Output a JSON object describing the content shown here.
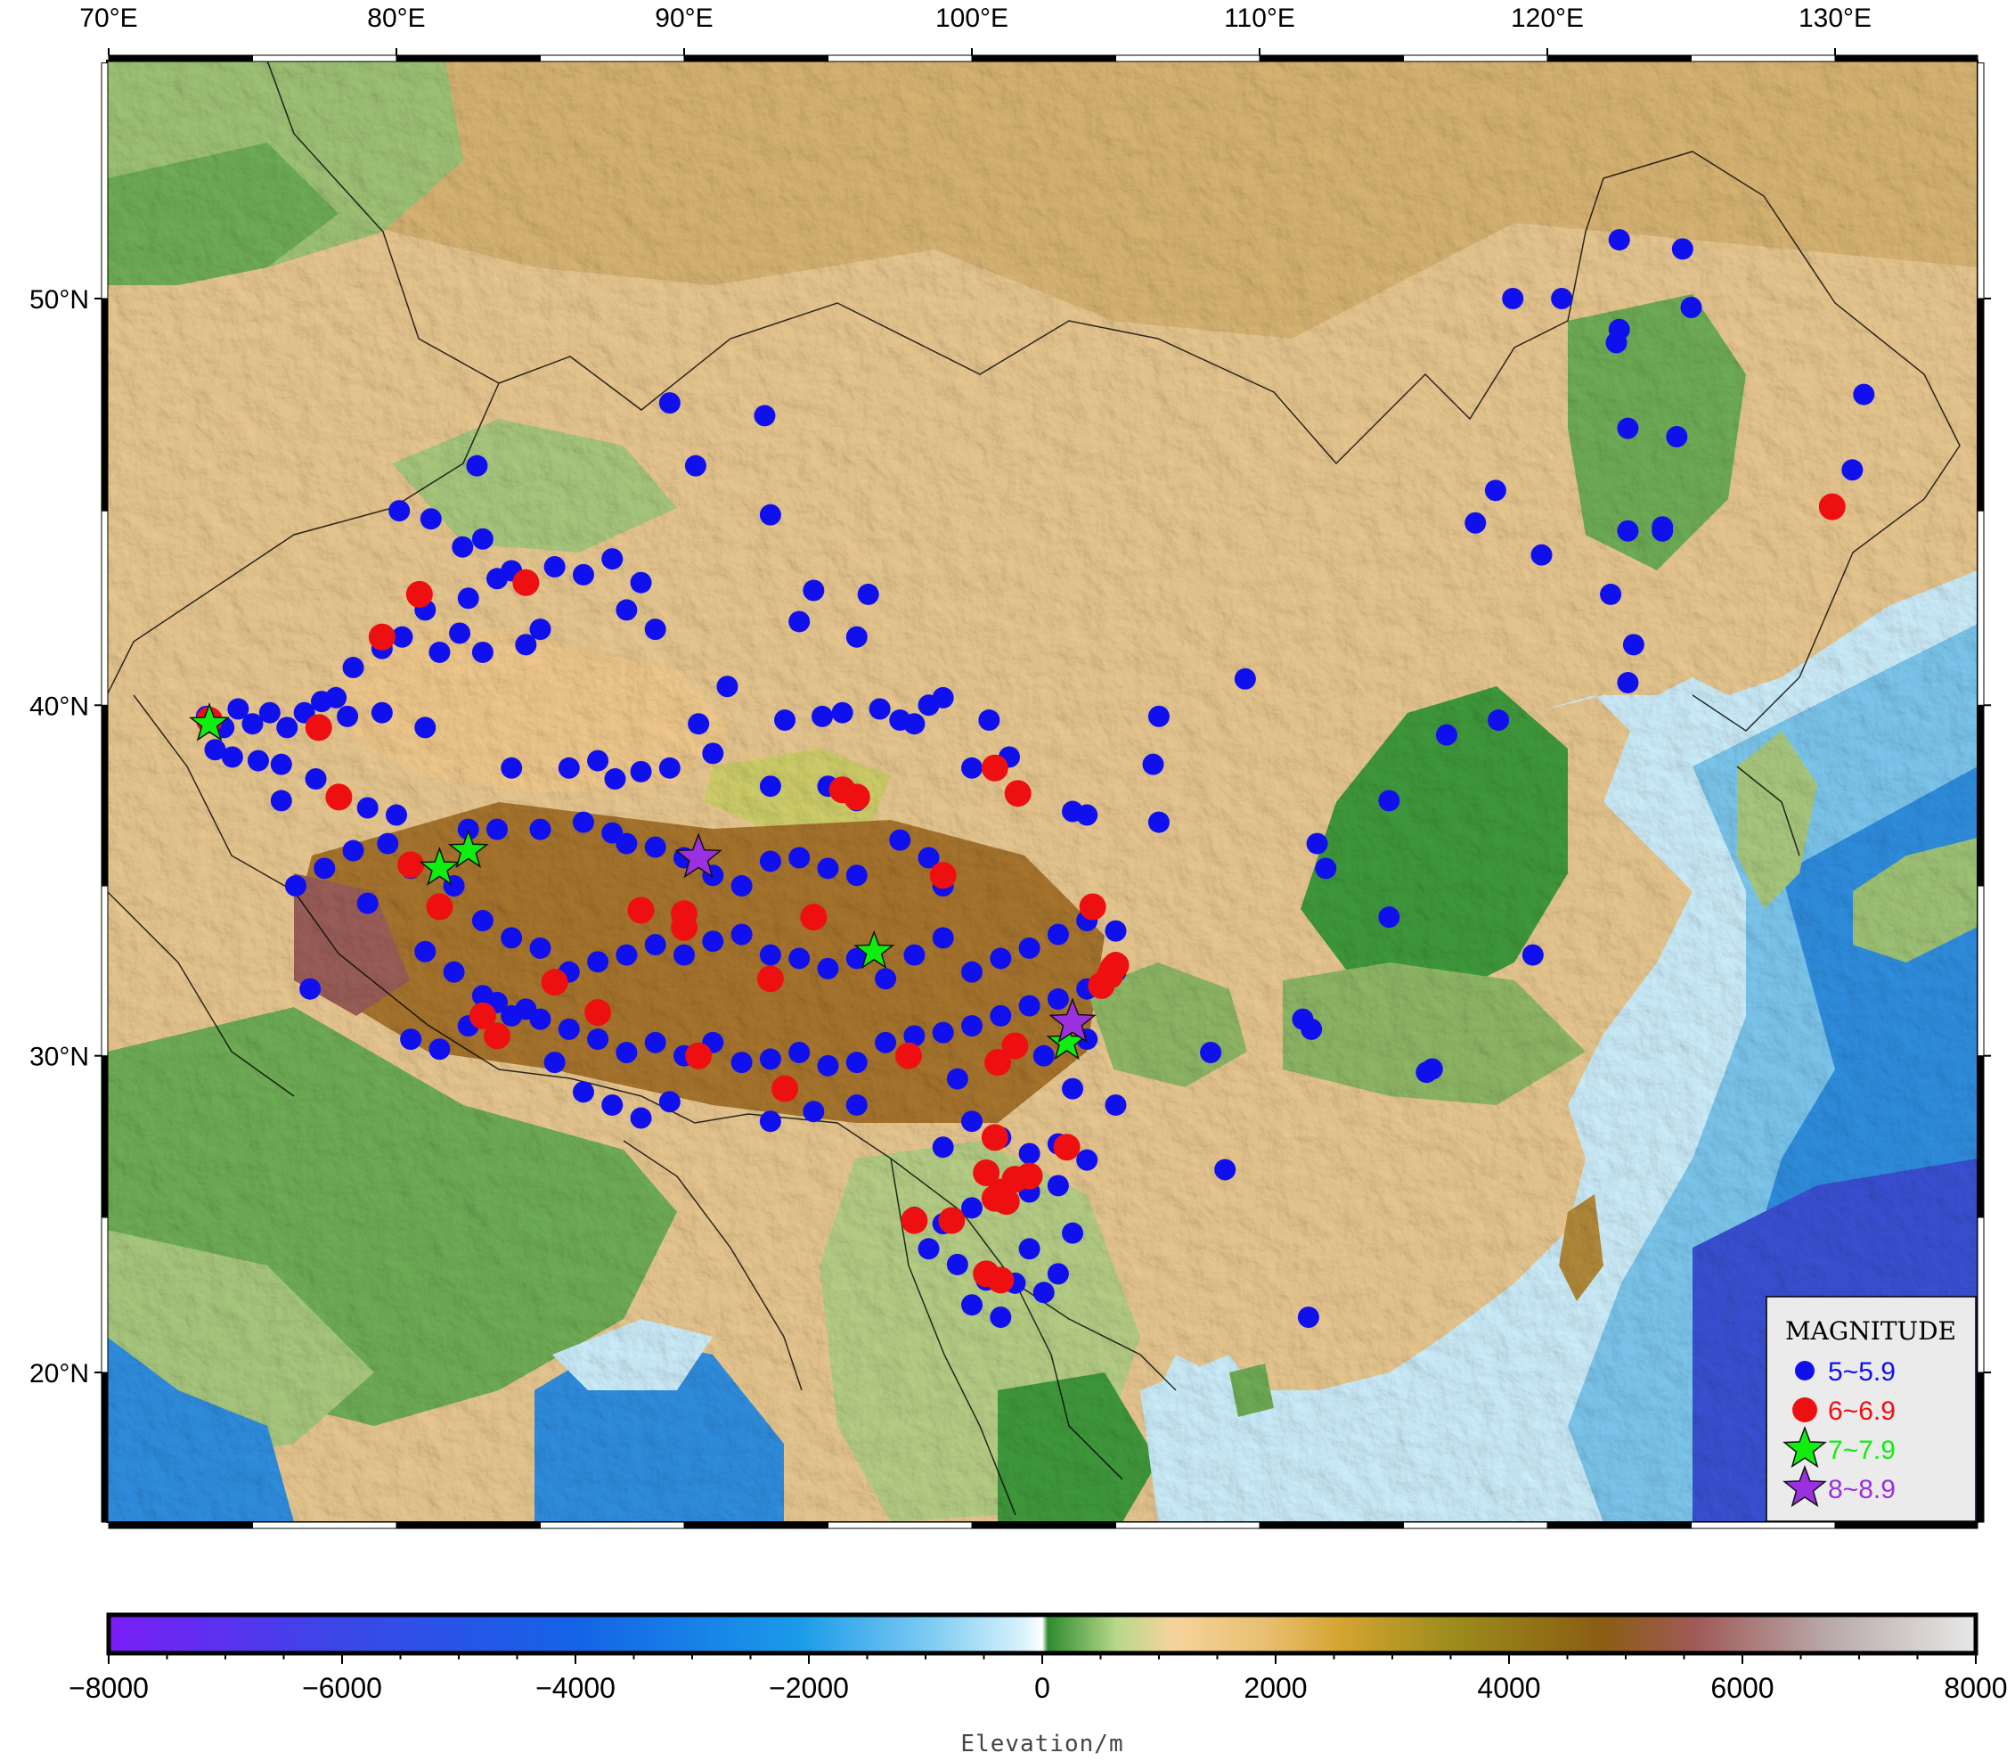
{
  "map": {
    "lon_labels": [
      "70°E",
      "80°E",
      "90°E",
      "100°E",
      "110°E",
      "120°E",
      "130°E"
    ],
    "lat_labels": [
      "50°N",
      "40°N",
      "30°N",
      "20°N"
    ],
    "colors": {
      "ocean_deep": "#3c56d8",
      "ocean_mid": "#1a8fe0",
      "ocean_shallow": "#cfeffb",
      "lowland": "#3f9a3c",
      "plain": "#9dc777",
      "hills": "#e8c38a",
      "mountains": "#c79a3e",
      "high_plateau": "#9b6b2a"
    }
  },
  "legend": {
    "title": "MAGNITUDE",
    "items": [
      {
        "label": "5~5.9",
        "color": "#1010ee",
        "symbol": "circle"
      },
      {
        "label": "6~6.9",
        "color": "#ee1010",
        "symbol": "circle"
      },
      {
        "label": "7~7.9",
        "color": "#10ee10",
        "symbol": "star"
      },
      {
        "label": "8~8.9",
        "color": "#9b30e0",
        "symbol": "star"
      }
    ]
  },
  "colorbar": {
    "title": "Elevation/m",
    "tick_labels": [
      "−8000",
      "−6000",
      "−4000",
      "−2000",
      "0",
      "2000",
      "4000",
      "6000",
      "8000"
    ],
    "min": -8000,
    "max": 8000
  },
  "earthquakes": {
    "mag5": [
      [
        73.4,
        39.7
      ],
      [
        74.0,
        39.4
      ],
      [
        74.5,
        39.9
      ],
      [
        75.0,
        39.5
      ],
      [
        75.6,
        39.8
      ],
      [
        76.2,
        39.4
      ],
      [
        76.8,
        39.8
      ],
      [
        77.4,
        40.1
      ],
      [
        77.9,
        40.2
      ],
      [
        78.3,
        39.7
      ],
      [
        73.7,
        38.8
      ],
      [
        74.3,
        38.6
      ],
      [
        75.2,
        38.5
      ],
      [
        76.0,
        38.4
      ],
      [
        77.2,
        38.0
      ],
      [
        78.0,
        37.5
      ],
      [
        79.0,
        37.2
      ],
      [
        80.0,
        37.0
      ],
      [
        79.7,
        36.2
      ],
      [
        80.5,
        35.5
      ],
      [
        76.0,
        37.4
      ],
      [
        78.5,
        41.0
      ],
      [
        79.5,
        41.5
      ],
      [
        80.2,
        41.8
      ],
      [
        81.5,
        41.4
      ],
      [
        82.2,
        41.9
      ],
      [
        83.0,
        41.4
      ],
      [
        84.5,
        41.6
      ],
      [
        85.0,
        42.0
      ],
      [
        81.0,
        42.5
      ],
      [
        82.5,
        42.8
      ],
      [
        83.5,
        43.3
      ],
      [
        84.0,
        43.5
      ],
      [
        85.5,
        43.6
      ],
      [
        86.5,
        43.4
      ],
      [
        87.5,
        43.8
      ],
      [
        88.5,
        43.2
      ],
      [
        89.0,
        42.0
      ],
      [
        88.0,
        42.5
      ],
      [
        82.3,
        44.1
      ],
      [
        83.0,
        44.3
      ],
      [
        81.2,
        44.8
      ],
      [
        80.1,
        45.0
      ],
      [
        82.8,
        46.1
      ],
      [
        79.5,
        39.8
      ],
      [
        81.0,
        39.4
      ],
      [
        84.0,
        38.3
      ],
      [
        86.0,
        38.3
      ],
      [
        87.0,
        38.5
      ],
      [
        88.5,
        38.2
      ],
      [
        89.5,
        38.3
      ],
      [
        87.6,
        38.0
      ],
      [
        91.0,
        38.7
      ],
      [
        93.0,
        37.8
      ],
      [
        95.0,
        37.8
      ],
      [
        96.0,
        37.4
      ],
      [
        96.8,
        39.9
      ],
      [
        97.5,
        39.6
      ],
      [
        98.0,
        39.5
      ],
      [
        98.5,
        40.0
      ],
      [
        99.0,
        40.2
      ],
      [
        91.5,
        40.5
      ],
      [
        90.5,
        39.5
      ],
      [
        93.5,
        39.6
      ],
      [
        94.8,
        39.7
      ],
      [
        95.5,
        39.8
      ],
      [
        100.6,
        39.6
      ],
      [
        101.3,
        38.6
      ],
      [
        100.0,
        38.3
      ],
      [
        103.5,
        37.1
      ],
      [
        104.0,
        37.0
      ],
      [
        106.5,
        39.7
      ],
      [
        106.3,
        38.4
      ],
      [
        106.5,
        36.8
      ],
      [
        109.5,
        40.7
      ],
      [
        82.5,
        36.6
      ],
      [
        83.5,
        36.6
      ],
      [
        85.0,
        36.6
      ],
      [
        86.5,
        36.8
      ],
      [
        87.5,
        36.5
      ],
      [
        88.0,
        36.2
      ],
      [
        89.0,
        36.1
      ],
      [
        90.0,
        35.8
      ],
      [
        91.0,
        35.3
      ],
      [
        92.0,
        35.0
      ],
      [
        93.0,
        35.7
      ],
      [
        94.0,
        35.8
      ],
      [
        95.0,
        35.5
      ],
      [
        96.0,
        35.3
      ],
      [
        97.5,
        36.3
      ],
      [
        98.5,
        35.8
      ],
      [
        99.0,
        35.0
      ],
      [
        82.0,
        35.0
      ],
      [
        83.0,
        34.0
      ],
      [
        84.0,
        33.5
      ],
      [
        85.0,
        33.2
      ],
      [
        86.0,
        32.5
      ],
      [
        87.0,
        32.8
      ],
      [
        88.0,
        33.0
      ],
      [
        89.0,
        33.3
      ],
      [
        90.0,
        33.0
      ],
      [
        91.0,
        33.4
      ],
      [
        92.0,
        33.6
      ],
      [
        93.0,
        33.0
      ],
      [
        94.0,
        32.9
      ],
      [
        95.0,
        32.6
      ],
      [
        96.0,
        32.9
      ],
      [
        97.0,
        32.3
      ],
      [
        98.0,
        33.0
      ],
      [
        99.0,
        33.5
      ],
      [
        100.0,
        32.5
      ],
      [
        101.0,
        32.9
      ],
      [
        102.0,
        33.2
      ],
      [
        103.0,
        33.6
      ],
      [
        104.0,
        34.0
      ],
      [
        105.0,
        33.7
      ],
      [
        81.0,
        33.1
      ],
      [
        82.0,
        32.5
      ],
      [
        83.0,
        31.8
      ],
      [
        84.0,
        31.2
      ],
      [
        85.0,
        31.1
      ],
      [
        86.0,
        30.8
      ],
      [
        87.0,
        30.5
      ],
      [
        88.0,
        30.1
      ],
      [
        89.0,
        30.4
      ],
      [
        90.0,
        30.0
      ],
      [
        91.0,
        30.4
      ],
      [
        92.0,
        29.8
      ],
      [
        93.0,
        29.9
      ],
      [
        94.0,
        30.1
      ],
      [
        95.0,
        29.7
      ],
      [
        96.0,
        29.8
      ],
      [
        97.0,
        30.4
      ],
      [
        98.0,
        30.6
      ],
      [
        99.0,
        30.7
      ],
      [
        100.0,
        30.9
      ],
      [
        101.0,
        31.2
      ],
      [
        102.0,
        31.5
      ],
      [
        103.0,
        31.7
      ],
      [
        104.0,
        32.0
      ],
      [
        105.0,
        32.5
      ],
      [
        80.5,
        30.5
      ],
      [
        81.5,
        30.2
      ],
      [
        82.5,
        30.9
      ],
      [
        83.5,
        31.6
      ],
      [
        84.5,
        31.4
      ],
      [
        85.5,
        29.8
      ],
      [
        86.5,
        28.9
      ],
      [
        87.5,
        28.5
      ],
      [
        88.5,
        28.1
      ],
      [
        89.5,
        28.6
      ],
      [
        93.0,
        28.0
      ],
      [
        94.5,
        28.3
      ],
      [
        96.0,
        28.5
      ],
      [
        100.0,
        28.0
      ],
      [
        101.0,
        27.5
      ],
      [
        102.0,
        27.0
      ],
      [
        103.0,
        27.3
      ],
      [
        99.0,
        27.2
      ],
      [
        98.0,
        25.0
      ],
      [
        99.0,
        24.8
      ],
      [
        100.0,
        25.3
      ],
      [
        101.0,
        25.5
      ],
      [
        102.0,
        25.8
      ],
      [
        103.0,
        26.0
      ],
      [
        98.5,
        24.0
      ],
      [
        99.5,
        23.5
      ],
      [
        100.5,
        23.0
      ],
      [
        101.5,
        22.9
      ],
      [
        102.5,
        22.6
      ],
      [
        103.0,
        23.2
      ],
      [
        100.0,
        22.2
      ],
      [
        101.0,
        21.8
      ],
      [
        102.0,
        24.0
      ],
      [
        103.5,
        24.5
      ],
      [
        104.0,
        26.8
      ],
      [
        105.0,
        28.5
      ],
      [
        103.5,
        29.0
      ],
      [
        104.0,
        30.5
      ],
      [
        102.5,
        30.0
      ],
      [
        99.5,
        29.3
      ],
      [
        77.0,
        32.0
      ],
      [
        76.5,
        35.0
      ],
      [
        77.5,
        35.5
      ],
      [
        78.5,
        36.0
      ],
      [
        79.0,
        34.5
      ],
      [
        108.3,
        30.1
      ],
      [
        108.8,
        26.5
      ],
      [
        111.5,
        31.1
      ],
      [
        111.8,
        30.8
      ],
      [
        112.0,
        36.2
      ],
      [
        112.3,
        35.5
      ],
      [
        114.5,
        37.4
      ],
      [
        114.5,
        34.1
      ],
      [
        115.8,
        29.5
      ],
      [
        116.0,
        29.6
      ],
      [
        116.5,
        39.2
      ],
      [
        118.3,
        39.6
      ],
      [
        119.5,
        33.0
      ],
      [
        111.7,
        21.8
      ],
      [
        117.5,
        44.7
      ],
      [
        118.2,
        45.5
      ],
      [
        118.8,
        50.0
      ],
      [
        120.5,
        50.0
      ],
      [
        119.8,
        43.9
      ],
      [
        122.2,
        42.9
      ],
      [
        122.5,
        51.3
      ],
      [
        122.5,
        49.3
      ],
      [
        122.8,
        47.0
      ],
      [
        122.8,
        44.5
      ],
      [
        122.8,
        40.6
      ],
      [
        123.0,
        41.6
      ],
      [
        124.0,
        44.6
      ],
      [
        124.0,
        44.5
      ],
      [
        124.5,
        46.8
      ],
      [
        124.7,
        51.1
      ],
      [
        125.0,
        49.8
      ],
      [
        131.0,
        47.8
      ],
      [
        130.6,
        46.0
      ],
      [
        122.4,
        49.0
      ],
      [
        92.8,
        47.3
      ],
      [
        89.5,
        47.6
      ],
      [
        90.4,
        46.1
      ],
      [
        93.0,
        44.9
      ],
      [
        94.5,
        43.0
      ],
      [
        94.0,
        42.2
      ],
      [
        96.0,
        41.8
      ],
      [
        96.4,
        42.9
      ]
    ],
    "mag6": [
      [
        73.5,
        39.6
      ],
      [
        77.3,
        39.4
      ],
      [
        78.0,
        37.5
      ],
      [
        79.5,
        41.8
      ],
      [
        80.8,
        42.9
      ],
      [
        84.5,
        43.2
      ],
      [
        80.5,
        35.6
      ],
      [
        81.5,
        34.4
      ],
      [
        83.0,
        31.2
      ],
      [
        83.5,
        30.6
      ],
      [
        85.5,
        32.2
      ],
      [
        87.0,
        31.3
      ],
      [
        88.5,
        34.3
      ],
      [
        90.0,
        33.8
      ],
      [
        90.0,
        34.2
      ],
      [
        90.5,
        30.0
      ],
      [
        93.0,
        32.3
      ],
      [
        94.5,
        34.1
      ],
      [
        95.5,
        37.7
      ],
      [
        96.0,
        37.5
      ],
      [
        99.0,
        35.3
      ],
      [
        93.5,
        29.0
      ],
      [
        97.8,
        30.0
      ],
      [
        100.8,
        38.3
      ],
      [
        101.6,
        37.6
      ],
      [
        100.9,
        29.8
      ],
      [
        101.5,
        30.3
      ],
      [
        104.2,
        34.4
      ],
      [
        104.5,
        32.1
      ],
      [
        104.9,
        32.6
      ],
      [
        104.8,
        32.4
      ],
      [
        105.0,
        32.7
      ],
      [
        103.3,
        27.2
      ],
      [
        100.5,
        26.4
      ],
      [
        101.0,
        25.8
      ],
      [
        101.5,
        26.2
      ],
      [
        102.0,
        26.3
      ],
      [
        100.8,
        25.6
      ],
      [
        101.2,
        25.5
      ],
      [
        100.5,
        23.2
      ],
      [
        101.0,
        23.0
      ],
      [
        98.0,
        24.9
      ],
      [
        99.3,
        24.9
      ],
      [
        100.8,
        27.5
      ],
      [
        129.9,
        45.1
      ]
    ],
    "mag7": [
      [
        73.5,
        39.5
      ],
      [
        81.5,
        35.5
      ],
      [
        82.5,
        36.0
      ],
      [
        96.6,
        33.1
      ],
      [
        103.3,
        30.4
      ]
    ],
    "mag8": [
      [
        90.5,
        35.8
      ],
      [
        103.5,
        31.0
      ]
    ]
  }
}
